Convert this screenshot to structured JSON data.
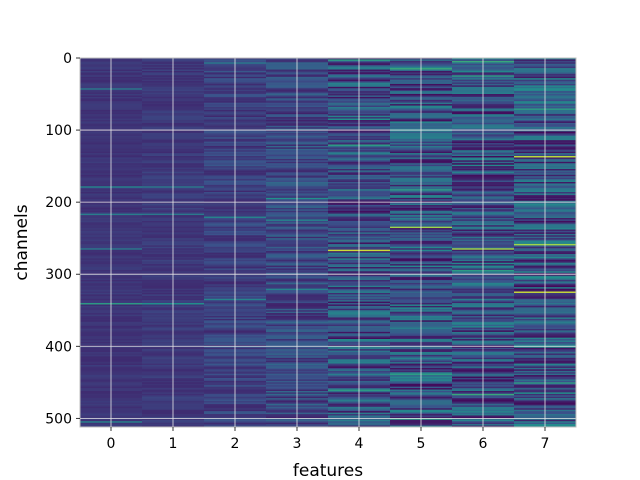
{
  "chart_data": {
    "type": "heatmap",
    "title": "",
    "xlabel": "features",
    "ylabel": "channels",
    "x_categories": [
      0,
      1,
      2,
      3,
      4,
      5,
      6,
      7
    ],
    "x_tick_labels": [
      "0",
      "1",
      "2",
      "3",
      "4",
      "5",
      "6",
      "7"
    ],
    "y_range": [
      0,
      512
    ],
    "y_tick_values": [
      0,
      100,
      200,
      300,
      400,
      500
    ],
    "y_tick_labels": [
      "0",
      "100",
      "200",
      "300",
      "400",
      "500"
    ],
    "y_axis_inverted": true,
    "grid": true,
    "colormap": "viridis",
    "colors": {
      "low": "#3b4f8c",
      "mid": "#21918c",
      "high": "#fde725",
      "grid": "#e8e8e8",
      "frame": "#bfbfbf"
    },
    "columns": [
      {
        "feature": 0,
        "base_level": 0.16,
        "variability": 0.03,
        "highlights": [
          {
            "channel": 42,
            "level": 0.4
          },
          {
            "channel": 178,
            "level": 0.45
          },
          {
            "channel": 217,
            "level": 0.42
          },
          {
            "channel": 265,
            "level": 0.4
          },
          {
            "channel": 341,
            "level": 0.55
          },
          {
            "channel": 505,
            "level": 0.45
          }
        ]
      },
      {
        "feature": 1,
        "base_level": 0.17,
        "variability": 0.04,
        "highlights": [
          {
            "channel": 178,
            "level": 0.4
          },
          {
            "channel": 217,
            "level": 0.4
          },
          {
            "channel": 341,
            "level": 0.5
          }
        ]
      },
      {
        "feature": 2,
        "base_level": 0.2,
        "variability": 0.08,
        "highlights": [
          {
            "channel": 6,
            "level": 0.4
          },
          {
            "channel": 220,
            "level": 0.45
          },
          {
            "channel": 335,
            "level": 0.45
          }
        ]
      },
      {
        "feature": 3,
        "base_level": 0.22,
        "variability": 0.12,
        "highlights": [
          {
            "channel": 195,
            "level": 0.5
          },
          {
            "channel": 225,
            "level": 0.45
          },
          {
            "channel": 320,
            "level": 0.45
          }
        ]
      },
      {
        "feature": 4,
        "base_level": 0.24,
        "variability": 0.2,
        "highlights": [
          {
            "channel": 2,
            "level": 0.55
          },
          {
            "channel": 85,
            "level": 0.5
          },
          {
            "channel": 120,
            "level": 0.55
          },
          {
            "channel": 267,
            "level": 0.92
          },
          {
            "channel": 390,
            "level": 0.5
          },
          {
            "channel": 460,
            "level": 0.55
          }
        ]
      },
      {
        "feature": 5,
        "base_level": 0.25,
        "variability": 0.22,
        "highlights": [
          {
            "channel": 15,
            "level": 0.6
          },
          {
            "channel": 182,
            "level": 0.55
          },
          {
            "channel": 234,
            "level": 0.85
          },
          {
            "channel": 280,
            "level": 0.05
          },
          {
            "channel": 439,
            "level": 0.55
          },
          {
            "channel": 500,
            "level": 0.55
          }
        ]
      },
      {
        "feature": 6,
        "base_level": 0.25,
        "variability": 0.22,
        "highlights": [
          {
            "channel": 5,
            "level": 0.6
          },
          {
            "channel": 25,
            "level": 0.55
          },
          {
            "channel": 264,
            "level": 0.85
          },
          {
            "channel": 295,
            "level": 0.55
          },
          {
            "channel": 467,
            "level": 0.6
          }
        ]
      },
      {
        "feature": 7,
        "base_level": 0.26,
        "variability": 0.24,
        "highlights": [
          {
            "channel": 70,
            "level": 0.55
          },
          {
            "channel": 137,
            "level": 0.9
          },
          {
            "channel": 259,
            "level": 0.85
          },
          {
            "channel": 325,
            "level": 0.92
          },
          {
            "channel": 450,
            "level": 0.55
          }
        ]
      }
    ]
  }
}
